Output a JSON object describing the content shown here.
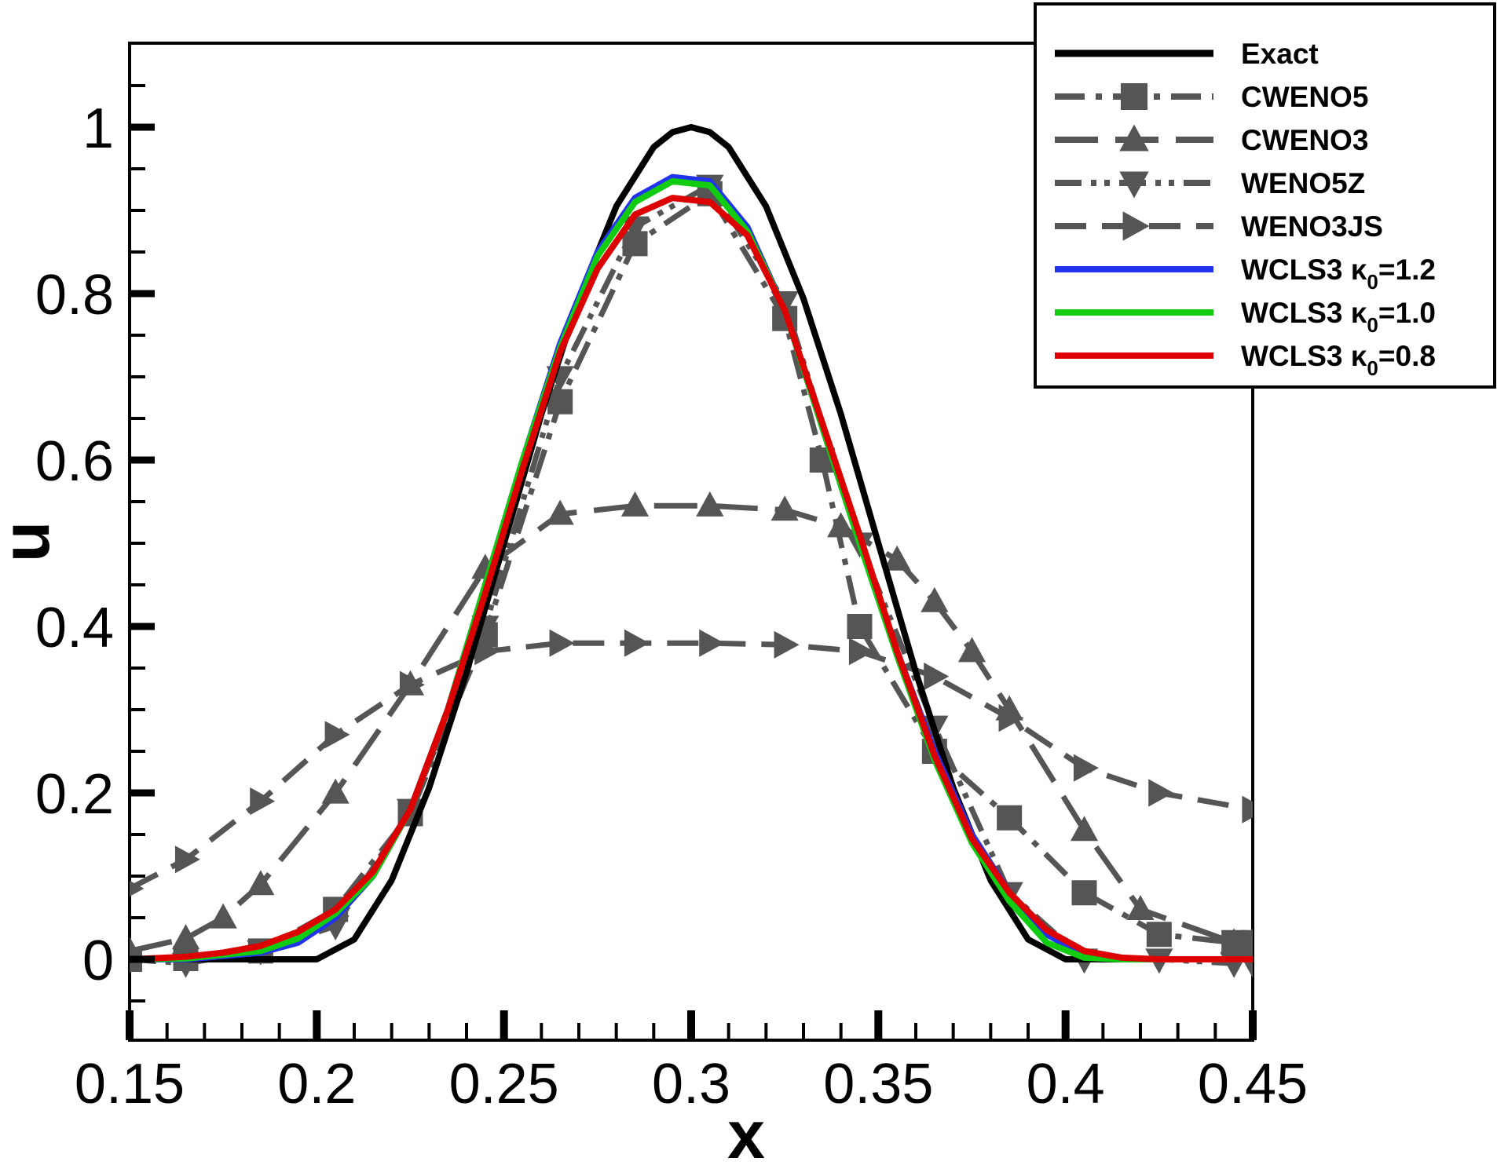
{
  "chart_data": {
    "type": "line",
    "title": "",
    "xlabel": "x",
    "ylabel": "u",
    "xlim": [
      0.15,
      0.45
    ],
    "ylim": [
      -0.08,
      1.1
    ],
    "xticks": [
      0.15,
      0.2,
      0.25,
      0.3,
      0.35,
      0.4,
      0.45
    ],
    "xtick_labels": [
      "0.15",
      "0.2",
      "0.25",
      "0.3",
      "0.35",
      "0.4",
      "0.45"
    ],
    "yticks": [
      0,
      0.2,
      0.4,
      0.6,
      0.8,
      1
    ],
    "ytick_labels": [
      "0",
      "0.2",
      "0.4",
      "0.6",
      "0.8",
      "1"
    ],
    "grid": false,
    "legend_position": "top-right",
    "series": [
      {
        "name": "Exact",
        "legend_label": "Exact",
        "color": "#000000",
        "dash": "solid",
        "marker": "none",
        "x": [
          0.15,
          0.2,
          0.21,
          0.22,
          0.23,
          0.24,
          0.25,
          0.26,
          0.27,
          0.28,
          0.29,
          0.295,
          0.3,
          0.305,
          0.31,
          0.32,
          0.33,
          0.34,
          0.35,
          0.36,
          0.37,
          0.38,
          0.39,
          0.4,
          0.45
        ],
        "y": [
          0,
          0,
          0.024,
          0.095,
          0.206,
          0.345,
          0.5,
          0.655,
          0.794,
          0.905,
          0.976,
          0.994,
          1,
          0.994,
          0.976,
          0.905,
          0.794,
          0.655,
          0.5,
          0.345,
          0.206,
          0.095,
          0.024,
          0,
          0
        ]
      },
      {
        "name": "CWENO5",
        "legend_label": "CWENO5",
        "color": "#555555",
        "dash": "dashdot",
        "marker": "square",
        "x": [
          0.15,
          0.165,
          0.185,
          0.205,
          0.225,
          0.245,
          0.265,
          0.285,
          0.305,
          0.325,
          0.335,
          0.345,
          0.365,
          0.385,
          0.405,
          0.425,
          0.445,
          0.45
        ],
        "y": [
          0,
          0.001,
          0.01,
          0.06,
          0.175,
          0.39,
          0.67,
          0.86,
          0.92,
          0.77,
          0.6,
          0.4,
          0.25,
          0.17,
          0.08,
          0.03,
          0.02,
          0.02
        ]
      },
      {
        "name": "CWENO3",
        "legend_label": "CWENO3",
        "color": "#555555",
        "dash": "longdash",
        "marker": "triangle-up",
        "x": [
          0.15,
          0.165,
          0.175,
          0.185,
          0.205,
          0.225,
          0.245,
          0.265,
          0.285,
          0.305,
          0.325,
          0.34,
          0.355,
          0.365,
          0.375,
          0.385,
          0.405,
          0.42,
          0.445,
          0.45
        ],
        "y": [
          0.01,
          0.025,
          0.05,
          0.09,
          0.2,
          0.33,
          0.47,
          0.535,
          0.545,
          0.545,
          0.54,
          0.52,
          0.48,
          0.43,
          0.37,
          0.3,
          0.155,
          0.06,
          0.02,
          0.02
        ]
      },
      {
        "name": "WENO5Z",
        "legend_label": "WENO5Z",
        "color": "#555555",
        "dash": "dashdotdot",
        "marker": "triangle-down",
        "x": [
          0.15,
          0.165,
          0.185,
          0.205,
          0.225,
          0.245,
          0.265,
          0.285,
          0.305,
          0.325,
          0.345,
          0.365,
          0.385,
          0.405,
          0.425,
          0.445,
          0.45
        ],
        "y": [
          0,
          -0.005,
          0.01,
          0.04,
          0.18,
          0.4,
          0.7,
          0.88,
          0.93,
          0.79,
          0.5,
          0.28,
          0.08,
          0,
          0,
          -0.005,
          -0.005
        ]
      },
      {
        "name": "WENO3JS",
        "legend_label": "WENO3JS",
        "color": "#555555",
        "dash": "dash",
        "marker": "triangle-right",
        "x": [
          0.15,
          0.165,
          0.185,
          0.205,
          0.225,
          0.245,
          0.265,
          0.285,
          0.305,
          0.325,
          0.345,
          0.365,
          0.385,
          0.405,
          0.425,
          0.45
        ],
        "y": [
          0.085,
          0.12,
          0.19,
          0.27,
          0.33,
          0.37,
          0.38,
          0.38,
          0.38,
          0.378,
          0.37,
          0.34,
          0.29,
          0.23,
          0.2,
          0.18
        ]
      },
      {
        "name": "WCLS3 k0=1.2",
        "legend_label": "WCLS3 κ",
        "kappa_subscript": "0",
        "kappa_value": "=1.2",
        "color": "#2233ee",
        "dash": "solid",
        "marker": "none",
        "x": [
          0.15,
          0.165,
          0.185,
          0.195,
          0.205,
          0.215,
          0.225,
          0.235,
          0.245,
          0.255,
          0.265,
          0.275,
          0.285,
          0.295,
          0.305,
          0.315,
          0.325,
          0.335,
          0.345,
          0.355,
          0.365,
          0.375,
          0.385,
          0.395,
          0.405,
          0.415,
          0.425,
          0.45
        ],
        "y": [
          0,
          0,
          0.008,
          0.02,
          0.05,
          0.1,
          0.18,
          0.3,
          0.45,
          0.6,
          0.74,
          0.85,
          0.915,
          0.94,
          0.935,
          0.88,
          0.78,
          0.64,
          0.5,
          0.37,
          0.25,
          0.15,
          0.08,
          0.03,
          0.005,
          0,
          0,
          0
        ]
      },
      {
        "name": "WCLS3 k0=1.0",
        "legend_label": "WCLS3 κ",
        "kappa_subscript": "0",
        "kappa_value": "=1.0",
        "color": "#11cc11",
        "dash": "solid",
        "marker": "none",
        "x": [
          0.15,
          0.165,
          0.185,
          0.195,
          0.205,
          0.215,
          0.225,
          0.235,
          0.245,
          0.255,
          0.265,
          0.275,
          0.285,
          0.295,
          0.305,
          0.315,
          0.325,
          0.335,
          0.345,
          0.355,
          0.365,
          0.375,
          0.385,
          0.395,
          0.405,
          0.415,
          0.425,
          0.45
        ],
        "y": [
          0,
          0.001,
          0.01,
          0.025,
          0.055,
          0.1,
          0.18,
          0.3,
          0.45,
          0.6,
          0.735,
          0.845,
          0.91,
          0.935,
          0.93,
          0.875,
          0.78,
          0.64,
          0.5,
          0.365,
          0.24,
          0.14,
          0.07,
          0.02,
          0.002,
          0,
          0,
          0
        ]
      },
      {
        "name": "WCLS3 k0=0.8",
        "legend_label": "WCLS3 κ",
        "kappa_subscript": "0",
        "kappa_value": "=0.8",
        "color": "#dd0000",
        "dash": "solid",
        "marker": "none",
        "x": [
          0.15,
          0.165,
          0.175,
          0.185,
          0.195,
          0.205,
          0.215,
          0.225,
          0.235,
          0.245,
          0.255,
          0.265,
          0.275,
          0.285,
          0.295,
          0.305,
          0.315,
          0.325,
          0.335,
          0.345,
          0.355,
          0.365,
          0.375,
          0.385,
          0.395,
          0.405,
          0.415,
          0.425,
          0.45
        ],
        "y": [
          0,
          0.003,
          0.008,
          0.016,
          0.033,
          0.06,
          0.105,
          0.18,
          0.3,
          0.44,
          0.59,
          0.73,
          0.83,
          0.895,
          0.915,
          0.91,
          0.87,
          0.78,
          0.645,
          0.51,
          0.37,
          0.245,
          0.145,
          0.08,
          0.035,
          0.01,
          0.002,
          0,
          0
        ]
      }
    ]
  }
}
